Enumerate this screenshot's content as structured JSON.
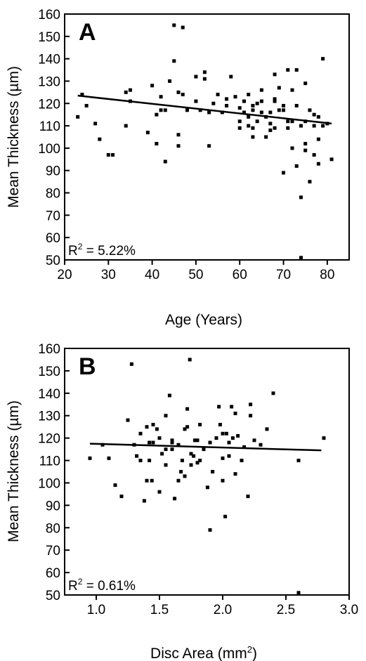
{
  "chart_data": [
    {
      "type": "scatter",
      "panel_label": "A",
      "xlabel": "Age (Years)",
      "ylabel": "Mean Thickness (µm)",
      "xlim": [
        20,
        85
      ],
      "ylim": [
        50,
        160
      ],
      "xticks": [
        20,
        30,
        40,
        50,
        60,
        70,
        80
      ],
      "yticks": [
        50,
        60,
        70,
        80,
        90,
        100,
        110,
        120,
        130,
        140,
        150,
        160
      ],
      "annotation_base": "R",
      "annotation_sup": "2",
      "annotation_rest": " = 5.22%",
      "trendline": {
        "x": [
          23,
          81
        ],
        "y": [
          123.5,
          111
        ]
      },
      "points": [
        [
          23,
          114
        ],
        [
          24,
          124
        ],
        [
          25,
          119
        ],
        [
          27,
          111
        ],
        [
          28,
          104
        ],
        [
          30,
          97
        ],
        [
          31,
          97
        ],
        [
          34,
          125
        ],
        [
          34,
          110
        ],
        [
          35,
          126
        ],
        [
          35,
          121
        ],
        [
          39,
          107
        ],
        [
          40,
          128
        ],
        [
          41,
          102
        ],
        [
          41,
          115
        ],
        [
          42,
          117
        ],
        [
          42,
          123
        ],
        [
          43,
          94
        ],
        [
          43,
          117
        ],
        [
          44,
          130
        ],
        [
          45,
          155
        ],
        [
          45,
          139
        ],
        [
          46,
          106
        ],
        [
          46,
          101
        ],
        [
          46,
          125
        ],
        [
          47,
          154
        ],
        [
          47,
          124
        ],
        [
          48,
          117
        ],
        [
          50,
          121
        ],
        [
          50,
          132
        ],
        [
          51,
          117
        ],
        [
          52,
          134
        ],
        [
          52,
          131
        ],
        [
          53,
          101
        ],
        [
          53,
          116
        ],
        [
          54,
          120
        ],
        [
          55,
          124
        ],
        [
          56,
          116
        ],
        [
          57,
          122
        ],
        [
          57,
          119
        ],
        [
          58,
          132
        ],
        [
          59,
          123
        ],
        [
          60,
          118
        ],
        [
          60,
          112
        ],
        [
          60,
          109
        ],
        [
          61,
          121
        ],
        [
          61,
          116
        ],
        [
          62,
          124
        ],
        [
          62,
          114
        ],
        [
          62,
          110
        ],
        [
          63,
          105
        ],
        [
          63,
          109
        ],
        [
          63,
          117
        ],
        [
          63,
          119
        ],
        [
          64,
          112
        ],
        [
          64,
          120
        ],
        [
          65,
          121
        ],
        [
          65,
          116
        ],
        [
          65,
          126
        ],
        [
          66,
          114
        ],
        [
          66,
          105
        ],
        [
          67,
          116
        ],
        [
          67,
          108
        ],
        [
          67,
          111
        ],
        [
          68,
          122
        ],
        [
          68,
          121
        ],
        [
          68,
          109
        ],
        [
          68,
          133
        ],
        [
          69,
          117
        ],
        [
          69,
          127
        ],
        [
          70,
          89
        ],
        [
          70,
          119
        ],
        [
          70,
          117
        ],
        [
          71,
          109
        ],
        [
          71,
          135
        ],
        [
          71,
          112
        ],
        [
          72,
          100
        ],
        [
          72,
          112
        ],
        [
          72,
          126
        ],
        [
          73,
          92
        ],
        [
          73,
          119
        ],
        [
          73,
          135
        ],
        [
          74,
          78
        ],
        [
          74,
          110
        ],
        [
          75,
          99
        ],
        [
          75,
          102
        ],
        [
          75,
          129
        ],
        [
          75,
          112
        ],
        [
          76,
          85
        ],
        [
          76,
          117
        ],
        [
          77,
          110
        ],
        [
          77,
          115
        ],
        [
          77,
          97
        ],
        [
          78,
          93
        ],
        [
          78,
          114
        ],
        [
          78,
          104
        ],
        [
          79,
          140
        ],
        [
          79,
          110
        ],
        [
          80,
          111
        ],
        [
          81,
          95
        ],
        [
          74,
          51
        ]
      ]
    },
    {
      "type": "scatter",
      "panel_label": "B",
      "xlabel_base": "Disc Area (mm",
      "xlabel_sup": "2",
      "xlabel_end": ")",
      "ylabel": "Mean Thickness (µm)",
      "xlim": [
        0.75,
        3.0
      ],
      "ylim": [
        50,
        160
      ],
      "xticks": [
        1.0,
        1.5,
        2.0,
        2.5,
        3.0
      ],
      "xtick_labels": [
        "1.0",
        "1.5",
        "2.0",
        "2.5",
        "3.0"
      ],
      "yticks": [
        50,
        60,
        70,
        80,
        90,
        100,
        110,
        120,
        130,
        140,
        150,
        160
      ],
      "annotation_base": "R",
      "annotation_sup": "2",
      "annotation_rest": " = 0.61%",
      "trendline": {
        "x": [
          0.95,
          2.78
        ],
        "y": [
          117.5,
          114.5
        ]
      },
      "points": [
        [
          0.95,
          111
        ],
        [
          1.05,
          117
        ],
        [
          1.1,
          111
        ],
        [
          1.15,
          99
        ],
        [
          1.2,
          94
        ],
        [
          1.25,
          128
        ],
        [
          1.28,
          153
        ],
        [
          1.3,
          117
        ],
        [
          1.32,
          112
        ],
        [
          1.35,
          110
        ],
        [
          1.35,
          122
        ],
        [
          1.38,
          92
        ],
        [
          1.4,
          125
        ],
        [
          1.4,
          101
        ],
        [
          1.42,
          110
        ],
        [
          1.42,
          118
        ],
        [
          1.44,
          101
        ],
        [
          1.45,
          126
        ],
        [
          1.45,
          118
        ],
        [
          1.48,
          124
        ],
        [
          1.5,
          96
        ],
        [
          1.5,
          120
        ],
        [
          1.52,
          113
        ],
        [
          1.55,
          130
        ],
        [
          1.55,
          108
        ],
        [
          1.58,
          139
        ],
        [
          1.6,
          119
        ],
        [
          1.6,
          115
        ],
        [
          1.62,
          93
        ],
        [
          1.65,
          117
        ],
        [
          1.65,
          101
        ],
        [
          1.67,
          105
        ],
        [
          1.68,
          110
        ],
        [
          1.7,
          103
        ],
        [
          1.72,
          125
        ],
        [
          1.72,
          133
        ],
        [
          1.74,
          155
        ],
        [
          1.75,
          113
        ],
        [
          1.75,
          108
        ],
        [
          1.77,
          112
        ],
        [
          1.78,
          119
        ],
        [
          1.8,
          119
        ],
        [
          1.8,
          109
        ],
        [
          1.82,
          126
        ],
        [
          1.82,
          110
        ],
        [
          1.85,
          115
        ],
        [
          1.88,
          98
        ],
        [
          1.9,
          79
        ],
        [
          1.9,
          118
        ],
        [
          1.92,
          105
        ],
        [
          1.95,
          120
        ],
        [
          1.97,
          134
        ],
        [
          1.98,
          126
        ],
        [
          2.0,
          111
        ],
        [
          2.0,
          101
        ],
        [
          2.02,
          85
        ],
        [
          2.03,
          122
        ],
        [
          2.05,
          118
        ],
        [
          2.05,
          112
        ],
        [
          2.07,
          134
        ],
        [
          2.08,
          120
        ],
        [
          2.1,
          131
        ],
        [
          2.1,
          104
        ],
        [
          2.12,
          121
        ],
        [
          2.15,
          110
        ],
        [
          2.17,
          116
        ],
        [
          2.2,
          94
        ],
        [
          2.22,
          135
        ],
        [
          2.22,
          130
        ],
        [
          2.25,
          119
        ],
        [
          2.3,
          117
        ],
        [
          2.35,
          124
        ],
        [
          2.4,
          140
        ],
        [
          2.6,
          110
        ],
        [
          2.8,
          120
        ],
        [
          2.6,
          51
        ],
        [
          1.7,
          124
        ],
        [
          1.55,
          115
        ],
        [
          1.6,
          118
        ],
        [
          2.0,
          122
        ]
      ]
    }
  ]
}
